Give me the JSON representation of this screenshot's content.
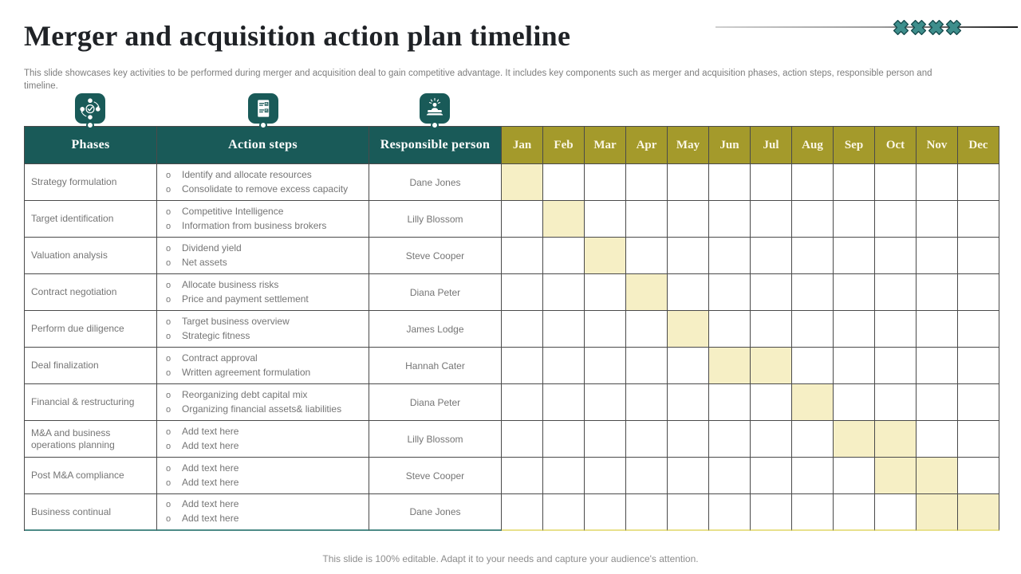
{
  "slide": {
    "title": "Merger and acquisition action plan timeline",
    "description": "This slide showcases key activities to be performed during merger and acquisition deal to gain competitive advantage. It includes key components such as merger and acquisition phases, action steps, responsible person and timeline.",
    "footer": "This slide is 100% editable. Adapt it to your needs and capture your audience's attention."
  },
  "icons": {
    "decoration": "x-cross-icon",
    "phases_column": "process-cycle-check-icon",
    "action_steps_column": "checklist-icon",
    "responsible_column": "presenter-award-icon"
  },
  "colors": {
    "header_teal": "#195a58",
    "month_gold": "#a49a2b",
    "gantt_highlight": "#f6efc5",
    "cross_fill": "#3e8e8c",
    "cross_outline": "#14494b",
    "text_gray": "#757575"
  },
  "table": {
    "headers": {
      "phases": "Phases",
      "action_steps": "Action steps",
      "responsible": "Responsible person"
    },
    "months": [
      "Jan",
      "Feb",
      "Mar",
      "Apr",
      "May",
      "Jun",
      "Jul",
      "Aug",
      "Sep",
      "Oct",
      "Nov",
      "Dec"
    ],
    "rows": [
      {
        "phase": "Strategy formulation",
        "steps": [
          "Identify and allocate resources",
          "Consolidate to remove excess capacity"
        ],
        "person": "Dane Jones",
        "active_months": [
          0
        ]
      },
      {
        "phase": "Target identification",
        "steps": [
          "Competitive Intelligence",
          "Information from business brokers"
        ],
        "person": "Lilly Blossom",
        "active_months": [
          1
        ]
      },
      {
        "phase": "Valuation analysis",
        "steps": [
          "Dividend yield",
          "Net assets"
        ],
        "person": "Steve Cooper",
        "active_months": [
          2
        ]
      },
      {
        "phase": "Contract negotiation",
        "steps": [
          "Allocate business risks",
          "Price and payment settlement"
        ],
        "person": "Diana Peter",
        "active_months": [
          3
        ]
      },
      {
        "phase": "Perform due diligence",
        "steps": [
          "Target business overview",
          "Strategic fitness"
        ],
        "person": "James Lodge",
        "active_months": [
          4
        ]
      },
      {
        "phase": "Deal finalization",
        "steps": [
          "Contract approval",
          "Written agreement formulation"
        ],
        "person": "Hannah Cater",
        "active_months": [
          5,
          6
        ]
      },
      {
        "phase": "Financial & restructuring",
        "steps": [
          "Reorganizing debt capital mix",
          "Organizing financial assets& liabilities"
        ],
        "person": "Diana Peter",
        "active_months": [
          7
        ]
      },
      {
        "phase": "M&A and business operations planning",
        "steps": [
          "Add text here",
          "Add text here"
        ],
        "person": "Lilly Blossom",
        "active_months": [
          8,
          9
        ]
      },
      {
        "phase": "Post M&A compliance",
        "steps": [
          "Add text here",
          "Add text here"
        ],
        "person": "Steve Cooper",
        "active_months": [
          9,
          10
        ]
      },
      {
        "phase": "Business continual",
        "steps": [
          "Add text here",
          "Add text here"
        ],
        "person": "Dane Jones",
        "active_months": [
          10,
          11
        ]
      }
    ]
  }
}
